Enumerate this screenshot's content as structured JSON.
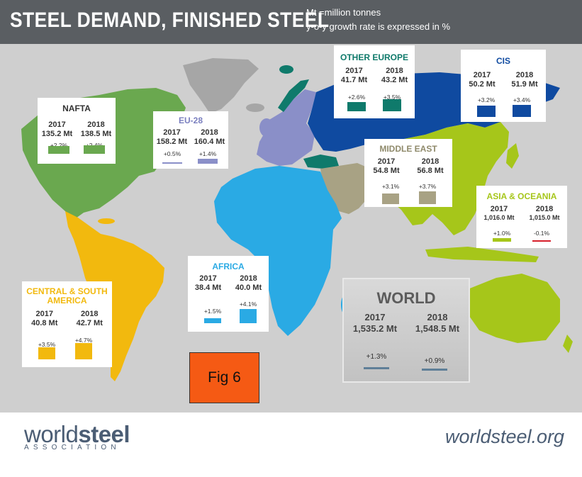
{
  "header": {
    "title": "STEEL DEMAND, FINISHED STEEL",
    "note_line1": "Mt =million tonnes",
    "note_line2": "y-o-y growth rate is expressed in %"
  },
  "colors": {
    "header_bg": "#5a5e62",
    "nafta": "#6aa84f",
    "eu28": "#8a8fc8",
    "other_europe": "#0f7a6b",
    "cis": "#0f4aa0",
    "middle_east": "#a8a284",
    "asia_oceania": "#a6c61a",
    "africa": "#2aaae4",
    "central_south_america": "#f2b90e",
    "world": "#5f7f98",
    "negative": "#d61f2a"
  },
  "regions": [
    {
      "id": "nafta",
      "name": "NAFTA",
      "y2017": "2017",
      "y2018": "2018",
      "v2017": "135.2 Mt",
      "v2018": "138.5 Mt",
      "g2017": "+2.2%",
      "g2018": "+2.4%",
      "growth2017": 2.2,
      "growth2018": 2.4
    },
    {
      "id": "eu28",
      "name": "EU-28",
      "y2017": "2017",
      "y2018": "2018",
      "v2017": "158.2 Mt",
      "v2018": "160.4 Mt",
      "g2017": "+0.5%",
      "g2018": "+1.4%",
      "growth2017": 0.5,
      "growth2018": 1.4
    },
    {
      "id": "other_europe",
      "name": "OTHER EUROPE",
      "y2017": "2017",
      "y2018": "2018",
      "v2017": "41.7 Mt",
      "v2018": "43.2 Mt",
      "g2017": "+2.6%",
      "g2018": "+3.5%",
      "growth2017": 2.6,
      "growth2018": 3.5
    },
    {
      "id": "cis",
      "name": "CIS",
      "y2017": "2017",
      "y2018": "2018",
      "v2017": "50.2 Mt",
      "v2018": "51.9 Mt",
      "g2017": "+3.2%",
      "g2018": "+3.4%",
      "growth2017": 3.2,
      "growth2018": 3.4
    },
    {
      "id": "middle_east",
      "name": "MIDDLE EAST",
      "y2017": "2017",
      "y2018": "2018",
      "v2017": "54.8 Mt",
      "v2018": "56.8 Mt",
      "g2017": "+3.1%",
      "g2018": "+3.7%",
      "growth2017": 3.1,
      "growth2018": 3.7
    },
    {
      "id": "asia_oceania",
      "name": "ASIA & OCEANIA",
      "y2017": "2017",
      "y2018": "2018",
      "v2017": "1,016.0 Mt",
      "v2018": "1,015.0 Mt",
      "g2017": "+1.0%",
      "g2018": "-0.1%",
      "growth2017": 1.0,
      "growth2018": -0.1
    },
    {
      "id": "africa",
      "name": "AFRICA",
      "y2017": "2017",
      "y2018": "2018",
      "v2017": "38.4 Mt",
      "v2018": "40.0 Mt",
      "g2017": "+1.5%",
      "g2018": "+4.1%",
      "growth2017": 1.5,
      "growth2018": 4.1
    },
    {
      "id": "central_south_america",
      "name": "CENTRAL & SOUTH AMERICA",
      "y2017": "2017",
      "y2018": "2018",
      "v2017": "40.8 Mt",
      "v2018": "42.7 Mt",
      "g2017": "+3.5%",
      "g2018": "+4.7%",
      "growth2017": 3.5,
      "growth2018": 4.7
    }
  ],
  "world": {
    "name": "WORLD",
    "y2017": "2017",
    "y2018": "2018",
    "v2017": "1,535.2 Mt",
    "v2018": "1,548.5 Mt",
    "g2017": "+1.3%",
    "g2018": "+0.9%",
    "growth2017": 1.3,
    "growth2018": 0.9
  },
  "fig_label": "Fig 6",
  "footer": {
    "logo_light": "world",
    "logo_bold": "steel",
    "logo_sub": "ASSOCIATION",
    "url": "worldsteel.org"
  }
}
